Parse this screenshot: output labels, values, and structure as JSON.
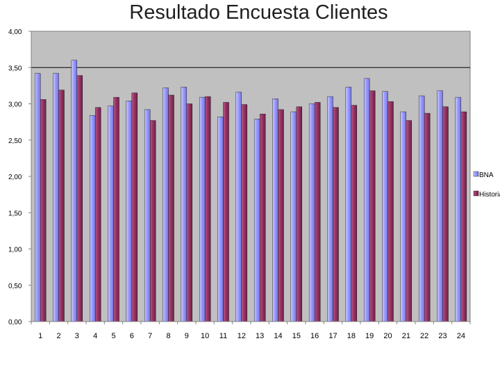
{
  "title": "Resultado Encuesta Clientes",
  "chart_data": {
    "type": "bar",
    "title": "Resultado Encuesta Clientes",
    "xlabel": "",
    "ylabel": "",
    "ylim": [
      0,
      4
    ],
    "yticks": [
      "0,00",
      "0,50",
      "1,00",
      "1,50",
      "2,00",
      "2,50",
      "3,00",
      "3,50",
      "4,00"
    ],
    "grid": "horizontal line at 3,50",
    "legend_position": "right",
    "categories": [
      "1",
      "2",
      "3",
      "4",
      "5",
      "6",
      "7",
      "8",
      "9",
      "10",
      "11",
      "12",
      "13",
      "14",
      "15",
      "16",
      "17",
      "18",
      "19",
      "20",
      "21",
      "22",
      "23",
      "24"
    ],
    "series": [
      {
        "name": "BNA",
        "color": "#9999ff",
        "values": [
          3.42,
          3.42,
          3.6,
          2.84,
          2.97,
          3.04,
          2.92,
          3.22,
          3.23,
          3.09,
          2.82,
          3.16,
          2.79,
          3.07,
          2.89,
          3.0,
          3.1,
          3.23,
          3.35,
          3.17,
          2.89,
          3.11,
          3.18,
          3.09
        ]
      },
      {
        "name": "Historia",
        "color": "#993366",
        "values": [
          3.06,
          3.19,
          3.39,
          2.95,
          3.09,
          3.15,
          2.77,
          3.12,
          3.0,
          3.1,
          3.02,
          2.99,
          2.86,
          2.92,
          2.96,
          3.02,
          2.95,
          2.98,
          3.18,
          3.03,
          2.77,
          2.87,
          2.96,
          2.89
        ]
      }
    ],
    "colors": {
      "plot_background": "#c0c0c0",
      "gridline": "#000000",
      "axis": "#808080"
    }
  }
}
